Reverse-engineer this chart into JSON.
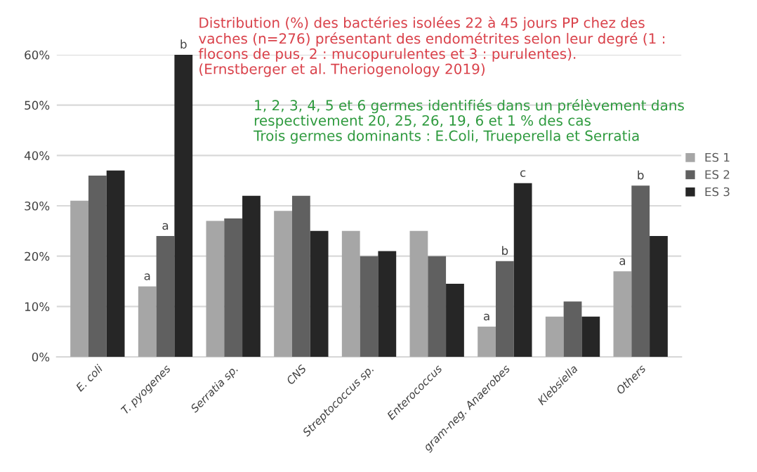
{
  "chart_data": {
    "type": "bar",
    "categories": [
      "E. coli",
      "T. pyogenes",
      "Serratia sp.",
      "CNS",
      "Streptococcus sp.",
      "Enterococcus",
      "gram-neg. Anaerobes",
      "Klebsiella",
      "Others"
    ],
    "series": [
      {
        "name": "ES 1",
        "color": "#a6a6a6",
        "values": [
          31,
          14,
          27,
          29,
          25,
          25,
          6,
          8,
          17
        ],
        "value_labels": [
          null,
          "a",
          null,
          null,
          null,
          null,
          "a",
          null,
          "a"
        ]
      },
      {
        "name": "ES 2",
        "color": "#606060",
        "values": [
          36,
          24,
          27.5,
          32,
          20,
          20,
          19,
          11,
          34
        ],
        "value_labels": [
          null,
          "a",
          null,
          null,
          null,
          null,
          "b",
          null,
          "b"
        ]
      },
      {
        "name": "ES 3",
        "color": "#262626",
        "values": [
          37,
          60,
          32,
          25,
          21,
          14.5,
          34.5,
          8,
          24
        ],
        "value_labels": [
          null,
          "b",
          null,
          null,
          null,
          null,
          "c",
          null,
          null
        ]
      }
    ],
    "ylim": [
      0,
      60
    ],
    "yticks": [
      {
        "value": 0,
        "label": "0%"
      },
      {
        "value": 10,
        "label": "10%"
      },
      {
        "value": 20,
        "label": "20%"
      },
      {
        "value": 30,
        "label": "30%"
      },
      {
        "value": 40,
        "label": "40%"
      },
      {
        "value": 50,
        "label": "50%"
      },
      {
        "value": 60,
        "label": "60%"
      }
    ],
    "grid": "y",
    "legend": "right",
    "annotations": [
      "Distribution (%) des bactéries isolées 22 à 45 jours PP chez des\nvaches (n=276) présentant des endométrites selon leur degré (1 :\nflocons de pus, 2 : mucopurulentes et 3 : purulentes).\n(Ernstberger et al. Theriogenology 2019)",
      "1, 2, 3, 4, 5 et 6 germes identifiés dans un prélèvement dans\nrespectivement 20, 25, 26, 19, 6 et 1 % des cas\nTrois germes dominants : E.Coli, Trueperella et Serratia"
    ]
  }
}
